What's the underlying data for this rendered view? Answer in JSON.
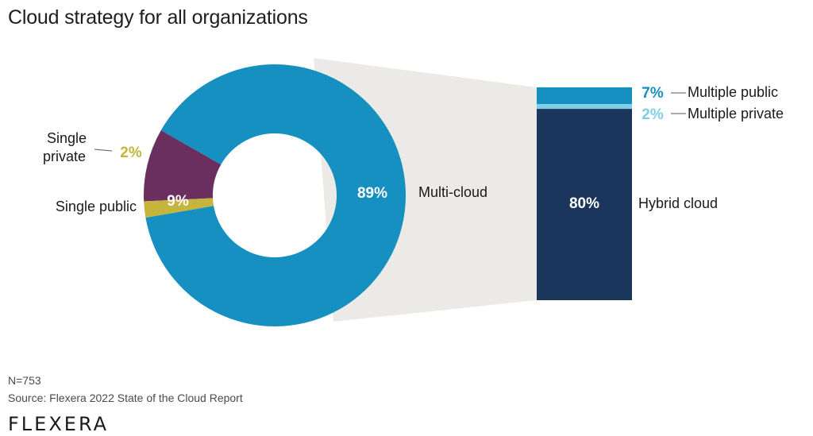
{
  "title": "Cloud strategy for all organizations",
  "note_n": "N=753",
  "source": "Source: Flexera 2022 State of the Cloud Report",
  "logo": "FLEXERA",
  "colors": {
    "multi_cloud": "#1590c0",
    "single_private": "#c7b43c",
    "single_public": "#6b2f5f",
    "hybrid": "#1b365d",
    "multiple_public": "#1590c0",
    "multiple_private": "#7ecfe6",
    "connector": "#ebeae6"
  },
  "chart_data": [
    {
      "type": "pie",
      "donut": true,
      "slices": [
        {
          "name": "Multi-cloud",
          "value": 89,
          "label": "89%",
          "color": "#1590c0"
        },
        {
          "name": "Single private",
          "value": 2,
          "label": "2%",
          "color": "#c7b43c"
        },
        {
          "name": "Single public",
          "value": 9,
          "label": "9%",
          "color": "#6b2f5f"
        }
      ]
    },
    {
      "type": "bar",
      "stacked": true,
      "breakdown_of": "Multi-cloud",
      "segments": [
        {
          "name": "Multiple public",
          "value": 7,
          "label": "7%",
          "color": "#1590c0"
        },
        {
          "name": "Multiple private",
          "value": 2,
          "label": "2%",
          "color": "#7ecfe6"
        },
        {
          "name": "Hybrid cloud",
          "value": 80,
          "label": "80%",
          "color": "#1b365d"
        }
      ]
    }
  ]
}
